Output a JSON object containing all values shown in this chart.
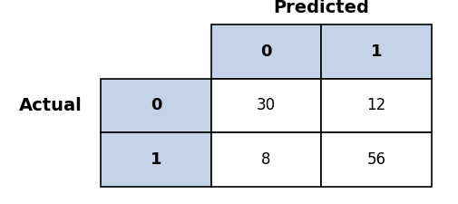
{
  "title": "Predicted",
  "row_label": "Actual",
  "col_headers": [
    "0",
    "1"
  ],
  "row_headers": [
    "0",
    "1"
  ],
  "values": [
    [
      30,
      12
    ],
    [
      8,
      56
    ]
  ],
  "header_bg_color": "#C5D3E8",
  "cell_bg_color": "#FFFFFF",
  "border_color": "#000000",
  "text_color": "#000000",
  "header_fontsize": 13,
  "cell_fontsize": 12,
  "axis_label_fontsize": 14,
  "bg_color": "#FFFFFF",
  "fig_width": 5.06,
  "fig_height": 2.25,
  "dpi": 100
}
